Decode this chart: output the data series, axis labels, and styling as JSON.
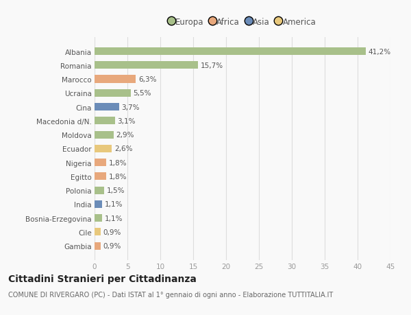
{
  "countries": [
    "Albania",
    "Romania",
    "Marocco",
    "Ucraina",
    "Cina",
    "Macedonia d/N.",
    "Moldova",
    "Ecuador",
    "Nigeria",
    "Egitto",
    "Polonia",
    "India",
    "Bosnia-Erzegovina",
    "Cile",
    "Gambia"
  ],
  "values": [
    41.2,
    15.7,
    6.3,
    5.5,
    3.7,
    3.1,
    2.9,
    2.6,
    1.8,
    1.8,
    1.5,
    1.1,
    1.1,
    0.9,
    0.9
  ],
  "labels": [
    "41,2%",
    "15,7%",
    "6,3%",
    "5,5%",
    "3,7%",
    "3,1%",
    "2,9%",
    "2,6%",
    "1,8%",
    "1,8%",
    "1,5%",
    "1,1%",
    "1,1%",
    "0,9%",
    "0,9%"
  ],
  "continents": [
    "Europa",
    "Europa",
    "Africa",
    "Europa",
    "Asia",
    "Europa",
    "Europa",
    "America",
    "Africa",
    "Africa",
    "Europa",
    "Asia",
    "Europa",
    "America",
    "Africa"
  ],
  "continent_colors": {
    "Europa": "#a8c08a",
    "Africa": "#e8a87c",
    "Asia": "#6b8cb8",
    "America": "#e8c87c"
  },
  "legend_order": [
    "Europa",
    "Africa",
    "Asia",
    "America"
  ],
  "legend_colors": [
    "#a8c08a",
    "#e8a87c",
    "#6b8cb8",
    "#e8c87c"
  ],
  "xlim": [
    0,
    45
  ],
  "xticks": [
    0,
    5,
    10,
    15,
    20,
    25,
    30,
    35,
    40,
    45
  ],
  "title": "Cittadini Stranieri per Cittadinanza",
  "subtitle": "COMUNE DI RIVERGARO (PC) - Dati ISTAT al 1° gennaio di ogni anno - Elaborazione TUTTITALIA.IT",
  "bg_color": "#f9f9f9",
  "grid_color": "#dddddd",
  "bar_height": 0.55,
  "label_fontsize": 7.5,
  "tick_fontsize": 7.5,
  "title_fontsize": 10,
  "subtitle_fontsize": 7
}
